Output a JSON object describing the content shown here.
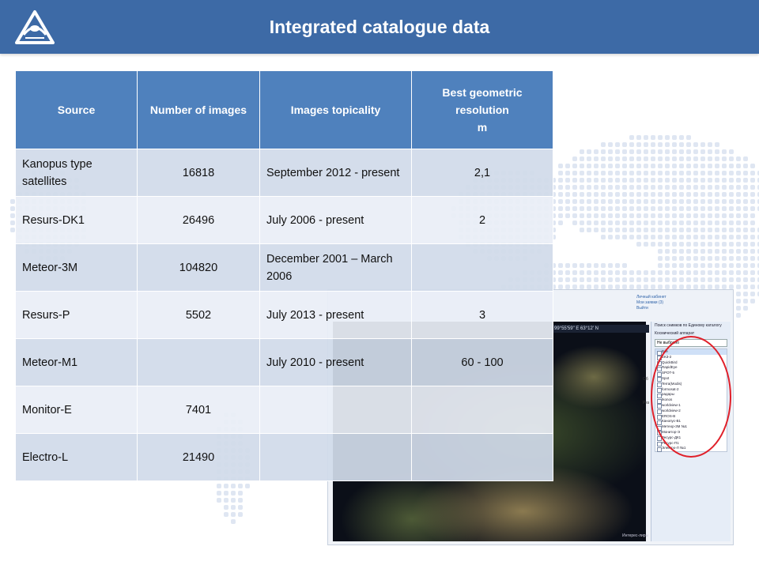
{
  "header": {
    "title": "Integrated catalogue data"
  },
  "table": {
    "headers": [
      "Source",
      "Number of images",
      "Images topicality",
      "Best geometric resolution\nm"
    ],
    "rows": [
      {
        "source": "Kanopus type satellites",
        "images": "16818",
        "topicality": "September 2012 - present",
        "resolution": "2,1"
      },
      {
        "source": "Resurs-DK1",
        "images": "26496",
        "topicality": "July 2006 - present",
        "resolution": "2"
      },
      {
        "source": "Meteor-3M",
        "images": "104820",
        "topicality": "December 2001 – March 2006",
        "resolution": ""
      },
      {
        "source": "Resurs-P",
        "images": "5502",
        "topicality": "July 2013 - present",
        "resolution": "3"
      },
      {
        "source": "Meteor-M1",
        "images": "",
        "topicality": "July 2010 - present",
        "resolution": "60 - 100"
      },
      {
        "source": "Monitor-E",
        "images": "7401",
        "topicality": "",
        "resolution": ""
      },
      {
        "source": "Electro-L",
        "images": "21490",
        "topicality": "",
        "resolution": ""
      }
    ]
  },
  "screenshot": {
    "coords": "99°55'59\" E  63°12' N",
    "top_links": [
      "Личный кабинет",
      "Мои заявки (3)",
      "Выйти"
    ],
    "panel_title": "Поиск снимков по Единому каталогу",
    "panel_subtitle": "Космический аппарат",
    "dropdown_value": "Не выбрано",
    "satellites": [
      "Все",
      "ЕКЗ-2",
      "QuickBird",
      "RapidEye",
      "SPOT-5",
      "Spot",
      "Terra(Modis)",
      "formosat-2",
      "радары",
      "Ikonos",
      "worldview-1",
      "worldview-2",
      "EROS-B",
      "Канопус-В1",
      "Метеор-3М №1",
      "Монитор-Э",
      "Ресурс-ДК1",
      "Ресурс-П1",
      "Электро-Л №1"
    ],
    "label_left_1": "Об",
    "label_left_2": "Рез",
    "footer_label": "Интерес-лиры",
    "accent_color": "#e0202a"
  },
  "colors": {
    "header_bg": "#3d6aa6",
    "table_header_bg": "#4f81bd",
    "row_odd": "#d1daea",
    "row_even": "#e9eef6"
  }
}
